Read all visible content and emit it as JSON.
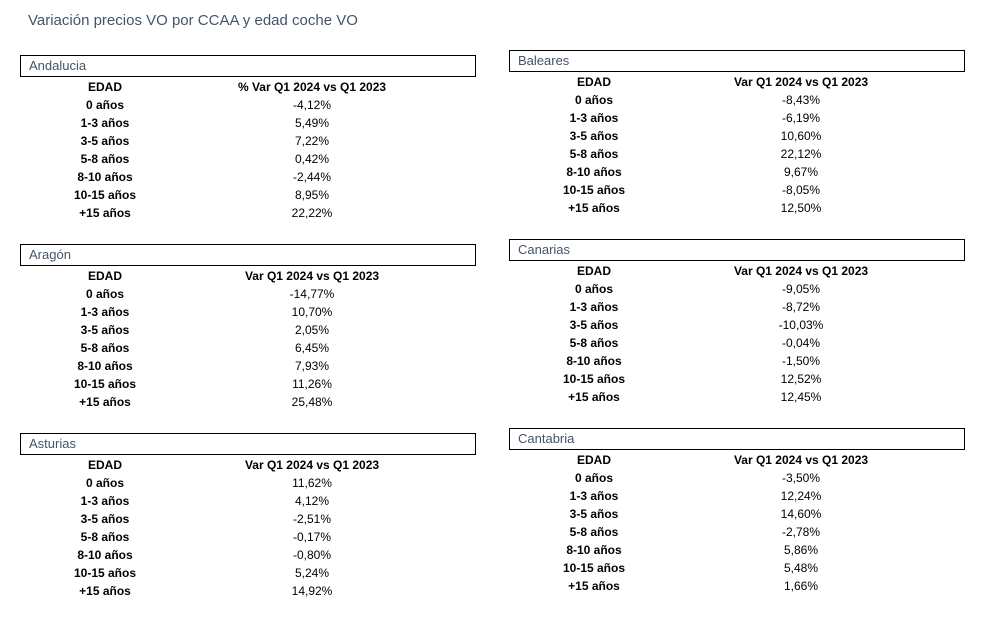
{
  "title": "Variación precios VO por CCAA y edad coche VO",
  "regions": [
    {
      "name": "Andalucia",
      "age_header": "EDAD",
      "value_header": "% Var Q1 2024 vs Q1 2023",
      "rows": [
        {
          "age": "0 años",
          "value": "-4,12%"
        },
        {
          "age": "1-3 años",
          "value": "5,49%"
        },
        {
          "age": "3-5 años",
          "value": "7,22%"
        },
        {
          "age": "5-8 años",
          "value": "0,42%"
        },
        {
          "age": "8-10 años",
          "value": "-2,44%"
        },
        {
          "age": "10-15 años",
          "value": "8,95%"
        },
        {
          "age": "+15 años",
          "value": "22,22%"
        }
      ]
    },
    {
      "name": "Baleares",
      "age_header": "EDAD",
      "value_header": "Var Q1 2024 vs Q1 2023",
      "rows": [
        {
          "age": "0 años",
          "value": "-8,43%"
        },
        {
          "age": "1-3 años",
          "value": "-6,19%"
        },
        {
          "age": "3-5 años",
          "value": "10,60%"
        },
        {
          "age": "5-8 años",
          "value": "22,12%"
        },
        {
          "age": "8-10 años",
          "value": "9,67%"
        },
        {
          "age": "10-15 años",
          "value": "-8,05%"
        },
        {
          "age": "+15 años",
          "value": "12,50%"
        }
      ]
    },
    {
      "name": "Aragón",
      "age_header": "EDAD",
      "value_header": "Var Q1 2024 vs Q1 2023",
      "rows": [
        {
          "age": "0 años",
          "value": "-14,77%"
        },
        {
          "age": "1-3 años",
          "value": "10,70%"
        },
        {
          "age": "3-5 años",
          "value": "2,05%"
        },
        {
          "age": "5-8 años",
          "value": "6,45%"
        },
        {
          "age": "8-10 años",
          "value": "7,93%"
        },
        {
          "age": "10-15 años",
          "value": "11,26%"
        },
        {
          "age": "+15 años",
          "value": "25,48%"
        }
      ]
    },
    {
      "name": "Canarias",
      "age_header": "EDAD",
      "value_header": "Var Q1 2024 vs Q1 2023",
      "rows": [
        {
          "age": "0 años",
          "value": "-9,05%"
        },
        {
          "age": "1-3 años",
          "value": "-8,72%"
        },
        {
          "age": "3-5 años",
          "value": "-10,03%"
        },
        {
          "age": "5-8 años",
          "value": "-0,04%"
        },
        {
          "age": "8-10 años",
          "value": "-1,50%"
        },
        {
          "age": "10-15 años",
          "value": "12,52%"
        },
        {
          "age": "+15 años",
          "value": "12,45%"
        }
      ]
    },
    {
      "name": "Asturias",
      "age_header": "EDAD",
      "value_header": "Var Q1 2024 vs Q1 2023",
      "rows": [
        {
          "age": "0 años",
          "value": "11,62%"
        },
        {
          "age": "1-3 años",
          "value": "4,12%"
        },
        {
          "age": "3-5 años",
          "value": "-2,51%"
        },
        {
          "age": "5-8 años",
          "value": "-0,17%"
        },
        {
          "age": "8-10 años",
          "value": "-0,80%"
        },
        {
          "age": "10-15 años",
          "value": "5,24%"
        },
        {
          "age": "+15 años",
          "value": "14,92%"
        }
      ]
    },
    {
      "name": "Cantabria",
      "age_header": "EDAD",
      "value_header": "Var Q1 2024 vs Q1 2023",
      "rows": [
        {
          "age": "0 años",
          "value": "-3,50%"
        },
        {
          "age": "1-3 años",
          "value": "12,24%"
        },
        {
          "age": "3-5 años",
          "value": "14,60%"
        },
        {
          "age": "5-8 años",
          "value": "-2,78%"
        },
        {
          "age": "8-10 años",
          "value": "5,86%"
        },
        {
          "age": "10-15 años",
          "value": "5,48%"
        },
        {
          "age": "+15 años",
          "value": "1,66%"
        }
      ]
    }
  ]
}
